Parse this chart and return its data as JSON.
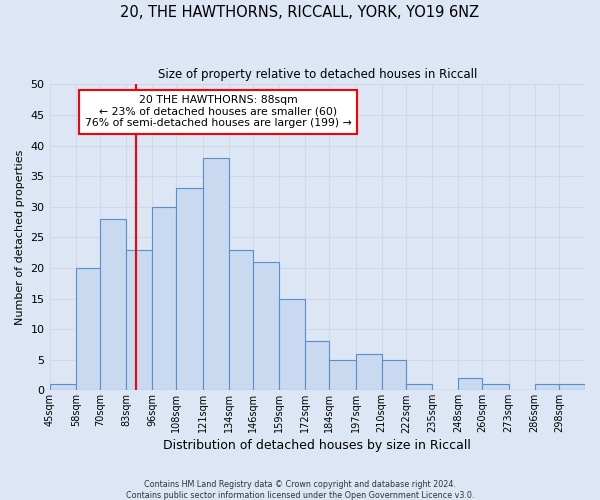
{
  "title": "20, THE HAWTHORNS, RICCALL, YORK, YO19 6NZ",
  "subtitle": "Size of property relative to detached houses in Riccall",
  "xlabel": "Distribution of detached houses by size in Riccall",
  "ylabel": "Number of detached properties",
  "bin_labels": [
    "45sqm",
    "58sqm",
    "70sqm",
    "83sqm",
    "96sqm",
    "108sqm",
    "121sqm",
    "134sqm",
    "146sqm",
    "159sqm",
    "172sqm",
    "184sqm",
    "197sqm",
    "210sqm",
    "222sqm",
    "235sqm",
    "248sqm",
    "260sqm",
    "273sqm",
    "286sqm",
    "298sqm"
  ],
  "bin_edges": [
    45,
    58,
    70,
    83,
    96,
    108,
    121,
    134,
    146,
    159,
    172,
    184,
    197,
    210,
    222,
    235,
    248,
    260,
    273,
    286,
    298,
    311
  ],
  "counts": [
    1,
    20,
    28,
    23,
    30,
    33,
    38,
    23,
    21,
    15,
    8,
    5,
    6,
    5,
    1,
    0,
    2,
    1,
    0,
    1,
    1
  ],
  "bar_facecolor": "#c8d9f0",
  "bar_edgecolor": "#5b8fc9",
  "redline_x": 88,
  "annotation_title": "20 THE HAWTHORNS: 88sqm",
  "annotation_line1": "← 23% of detached houses are smaller (60)",
  "annotation_line2": "76% of semi-detached houses are larger (199) →",
  "annotation_box_color": "white",
  "annotation_box_edgecolor": "red",
  "redline_color": "red",
  "ylim": [
    0,
    50
  ],
  "yticks": [
    0,
    5,
    10,
    15,
    20,
    25,
    30,
    35,
    40,
    45,
    50
  ],
  "grid_color": "#d0d8e8",
  "bg_color": "#dce6f5",
  "footer1": "Contains HM Land Registry data © Crown copyright and database right 2024.",
  "footer2": "Contains public sector information licensed under the Open Government Licence v3.0."
}
